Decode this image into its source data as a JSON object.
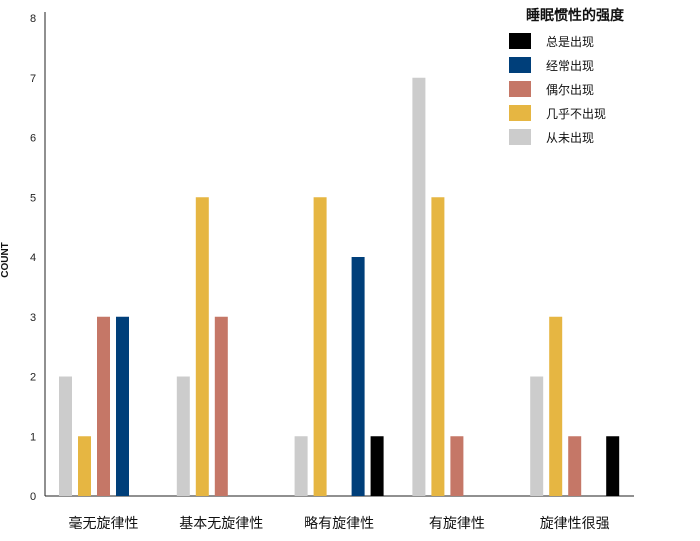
{
  "chart_data": {
    "type": "bar",
    "title": "",
    "xlabel": "",
    "ylabel": "COUNT",
    "ylim": [
      0,
      8
    ],
    "yticks": [
      0,
      1,
      2,
      3,
      4,
      5,
      6,
      7,
      8
    ],
    "grid": false,
    "legend_placement": "top-right",
    "legend_title": "睡眠惯性的强度",
    "categories": [
      "毫无旋律性",
      "基本无旋律性",
      "略有旋律性",
      "有旋律性",
      "旋律性很强"
    ],
    "series": [
      {
        "name": "从未出现",
        "color": "#cccccc",
        "values": [
          2,
          2,
          1,
          7,
          2
        ]
      },
      {
        "name": "几乎不出现",
        "color": "#e6b642",
        "values": [
          1,
          5,
          5,
          5,
          3
        ]
      },
      {
        "name": "偶尔出现",
        "color": "#c57767",
        "values": [
          3,
          3,
          0,
          1,
          1
        ]
      },
      {
        "name": "经常出现",
        "color": "#003f7a",
        "values": [
          3,
          0,
          4,
          0,
          0
        ]
      },
      {
        "name": "总是出现",
        "color": "#000000",
        "values": [
          0,
          0,
          1,
          0,
          1
        ]
      }
    ],
    "legend_order": [
      "总是出现",
      "经常出现",
      "偶尔出现",
      "几乎不出现",
      "从未出现"
    ]
  }
}
